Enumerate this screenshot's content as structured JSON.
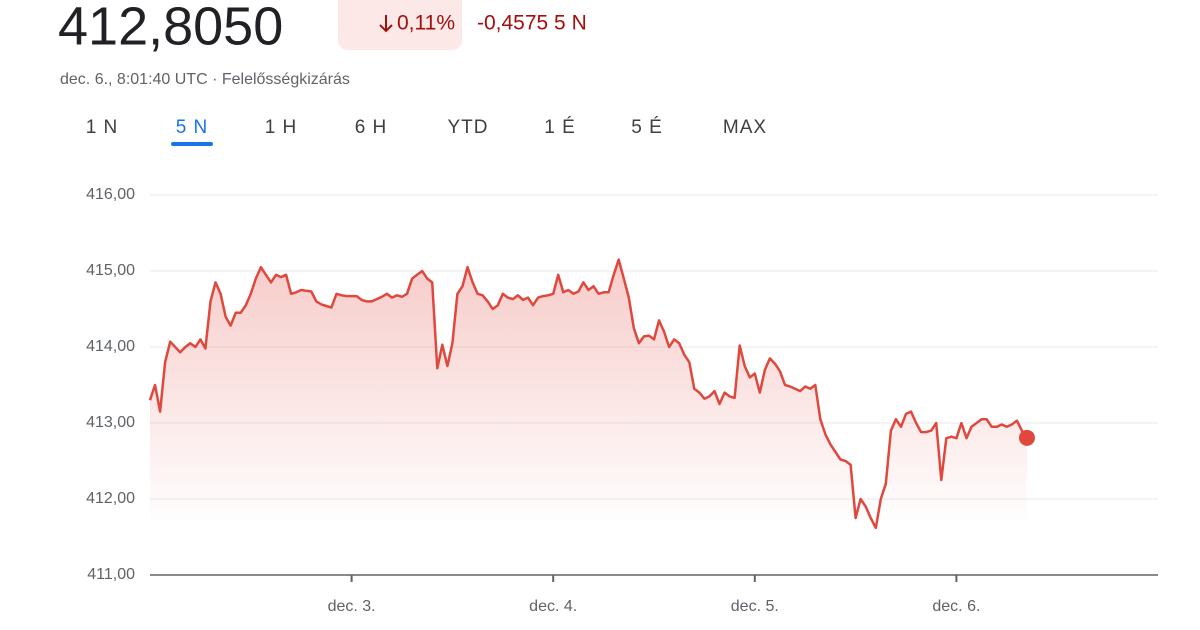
{
  "header": {
    "price": "412,8050",
    "change_pct": "0,11%",
    "change_abs": "-0,4575 5 N",
    "subtitle": "dec. 6., 8:01:40 UTC · Felelősségkizárás"
  },
  "tabs": {
    "items": [
      "1 N",
      "5 N",
      "1 H",
      "6 H",
      "YTD",
      "1 É",
      "5 É",
      "MAX"
    ],
    "selected": 1
  },
  "chart_data": {
    "type": "line",
    "color": "#e0483e",
    "grid": true,
    "xlim": [
      2,
      7
    ],
    "ylim": [
      411,
      416
    ],
    "xticks": [
      {
        "value": 3,
        "label": "dec. 3."
      },
      {
        "value": 4,
        "label": "dec. 4."
      },
      {
        "value": 5,
        "label": "dec. 5."
      },
      {
        "value": 6,
        "label": "dec. 6."
      }
    ],
    "yticks": [
      {
        "value": 411,
        "label": "411,00"
      },
      {
        "value": 412,
        "label": "412,00"
      },
      {
        "value": 413,
        "label": "413,00"
      },
      {
        "value": 414,
        "label": "414,00"
      },
      {
        "value": 415,
        "label": "415,00"
      },
      {
        "value": 416,
        "label": "416,00"
      }
    ],
    "x": [
      2,
      2.025,
      2.05,
      2.075,
      2.1,
      2.125,
      2.15,
      2.175,
      2.2,
      2.225,
      2.25,
      2.275,
      2.3,
      2.325,
      2.35,
      2.375,
      2.4,
      2.425,
      2.45,
      2.475,
      2.5,
      2.525,
      2.55,
      2.575,
      2.6,
      2.625,
      2.65,
      2.675,
      2.7,
      2.725,
      2.75,
      2.775,
      2.8,
      2.825,
      2.85,
      2.875,
      2.9,
      2.925,
      2.95,
      2.975,
      3,
      3.025,
      3.05,
      3.075,
      3.1,
      3.125,
      3.15,
      3.175,
      3.2,
      3.225,
      3.25,
      3.275,
      3.3,
      3.325,
      3.35,
      3.375,
      3.4,
      3.425,
      3.45,
      3.475,
      3.5,
      3.525,
      3.55,
      3.575,
      3.6,
      3.625,
      3.65,
      3.675,
      3.7,
      3.725,
      3.75,
      3.775,
      3.8,
      3.825,
      3.85,
      3.875,
      3.9,
      3.925,
      3.95,
      3.975,
      4,
      4.025,
      4.05,
      4.075,
      4.1,
      4.125,
      4.15,
      4.175,
      4.2,
      4.225,
      4.25,
      4.275,
      4.3,
      4.325,
      4.35,
      4.375,
      4.4,
      4.425,
      4.45,
      4.475,
      4.5,
      4.525,
      4.55,
      4.575,
      4.6,
      4.625,
      4.65,
      4.675,
      4.7,
      4.725,
      4.75,
      4.775,
      4.8,
      4.825,
      4.85,
      4.875,
      4.9,
      4.925,
      4.95,
      4.975,
      5,
      5.025,
      5.05,
      5.075,
      5.1,
      5.125,
      5.15,
      5.175,
      5.2,
      5.225,
      5.25,
      5.275,
      5.3,
      5.325,
      5.35,
      5.375,
      5.4,
      5.425,
      5.45,
      5.475,
      5.5,
      5.525,
      5.55,
      5.575,
      5.6,
      5.625,
      5.65,
      5.675,
      5.7,
      5.725,
      5.75,
      5.775,
      5.8,
      5.825,
      5.85,
      5.875,
      5.9,
      5.925,
      5.95,
      5.975,
      6,
      6.025,
      6.05,
      6.075,
      6.1,
      6.125,
      6.15,
      6.175,
      6.2,
      6.225,
      6.25,
      6.275,
      6.3,
      6.325,
      6.35
    ],
    "values": [
      413.3,
      413.5,
      413.15,
      413.8,
      414.07,
      414.0,
      413.93,
      414.0,
      414.05,
      414.0,
      414.1,
      413.98,
      414.6,
      414.85,
      414.7,
      414.4,
      414.28,
      414.45,
      414.45,
      414.55,
      414.7,
      414.9,
      415.05,
      414.95,
      414.85,
      414.95,
      414.92,
      414.95,
      414.7,
      414.72,
      414.75,
      414.74,
      414.73,
      414.6,
      414.56,
      414.54,
      414.52,
      414.7,
      414.68,
      414.67,
      414.67,
      414.67,
      414.62,
      414.6,
      414.6,
      414.63,
      414.66,
      414.7,
      414.65,
      414.68,
      414.66,
      414.7,
      414.9,
      414.95,
      415.0,
      414.9,
      414.85,
      413.72,
      414.03,
      413.75,
      414.05,
      414.7,
      414.8,
      415.05,
      414.85,
      414.7,
      414.68,
      414.6,
      414.5,
      414.55,
      414.7,
      414.65,
      414.63,
      414.68,
      414.62,
      414.65,
      414.55,
      414.65,
      414.67,
      414.68,
      414.7,
      414.95,
      414.72,
      414.75,
      414.7,
      414.73,
      414.85,
      414.75,
      414.8,
      414.7,
      414.72,
      414.72,
      414.95,
      415.15,
      414.9,
      414.65,
      414.25,
      414.05,
      414.14,
      414.15,
      414.1,
      414.35,
      414.2,
      414.0,
      414.1,
      414.05,
      413.9,
      413.8,
      413.45,
      413.4,
      413.32,
      413.35,
      413.42,
      413.25,
      413.4,
      413.35,
      413.33,
      414.02,
      413.75,
      413.6,
      413.65,
      413.4,
      413.7,
      413.85,
      413.78,
      413.68,
      413.5,
      413.48,
      413.45,
      413.42,
      413.48,
      413.45,
      413.5,
      413.05,
      412.85,
      412.72,
      412.62,
      412.52,
      412.5,
      412.45,
      411.75,
      412.0,
      411.9,
      411.75,
      411.62,
      412.0,
      412.2,
      412.9,
      413.05,
      412.95,
      413.12,
      413.15,
      413.0,
      412.88,
      412.88,
      412.9,
      413.0,
      412.25,
      412.8,
      412.82,
      412.8,
      413.0,
      412.8,
      412.95,
      413.0,
      413.05,
      413.05,
      412.95,
      412.95,
      412.98,
      412.95,
      412.98,
      413.03,
      412.9,
      412.805
    ]
  }
}
